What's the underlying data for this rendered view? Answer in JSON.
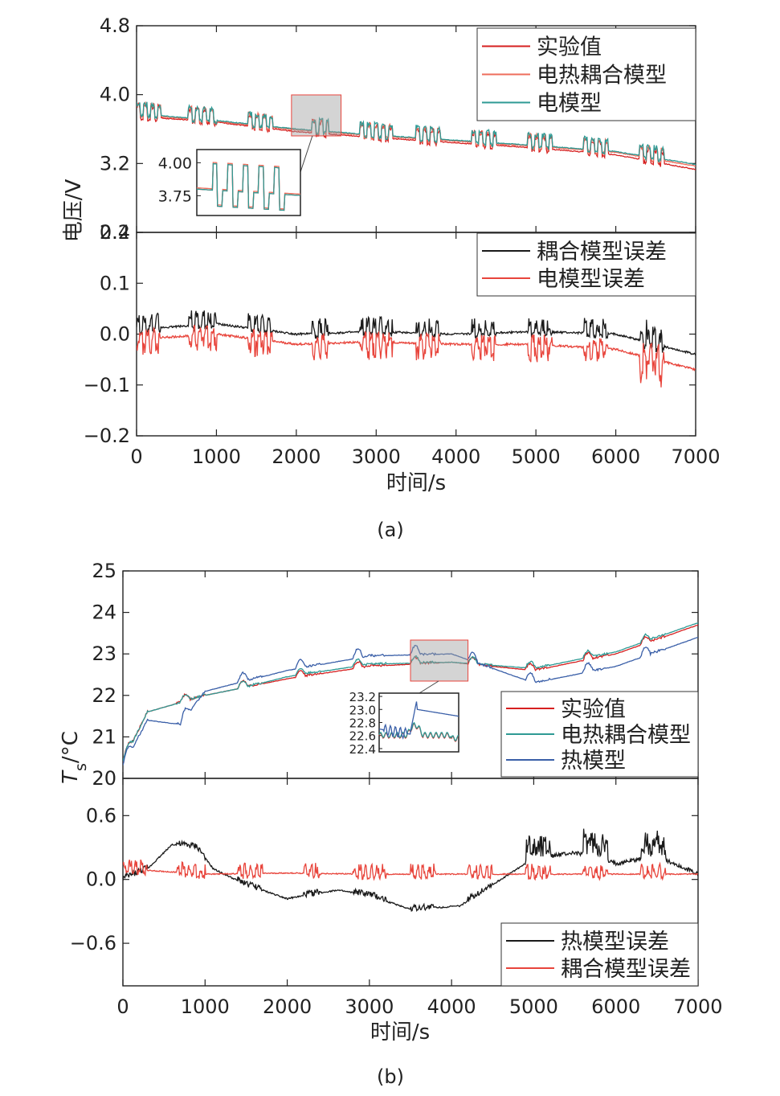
{
  "figure": {
    "panel_a_caption": "(a)",
    "panel_b_caption": "(b)",
    "xlabel": "时间/s",
    "xticks": [
      0,
      1000,
      2000,
      3000,
      4000,
      5000,
      6000,
      7000
    ],
    "xlim": [
      0,
      7000
    ]
  },
  "chart_data": [
    {
      "id": "a_top",
      "type": "line",
      "ylabel_shared": "电压/V",
      "ylim": [
        2.4,
        4.8
      ],
      "yticks": [
        "4.8",
        "4.0",
        "3.2",
        "2.4"
      ],
      "ytick_values": [
        4.8,
        4.0,
        3.2,
        2.4
      ],
      "legend_position": "top-right",
      "series": [
        {
          "name": "实验值",
          "color": "#d62020",
          "base": [
            [
              0,
              3.75
            ],
            [
              1000,
              3.68
            ],
            [
              2000,
              3.57
            ],
            [
              3000,
              3.5
            ],
            [
              4000,
              3.44
            ],
            [
              5000,
              3.38
            ],
            [
              6000,
              3.3
            ],
            [
              7000,
              3.13
            ]
          ],
          "pulses": {
            "bursts": [
              [
                0,
                300
              ],
              [
                650,
                1000
              ],
              [
                1400,
                1700
              ],
              [
                2200,
                2400
              ],
              [
                2800,
                3200
              ],
              [
                3500,
                3800
              ],
              [
                4200,
                4500
              ],
              [
                4900,
                5200
              ],
              [
                5600,
                5900
              ],
              [
                6300,
                6600
              ]
            ],
            "amp": 0.15
          }
        },
        {
          "name": "电热耦合模型",
          "color": "#ee6d5b",
          "base": [
            [
              0,
              3.77
            ],
            [
              1000,
              3.69
            ],
            [
              2000,
              3.59
            ],
            [
              3000,
              3.52
            ],
            [
              4000,
              3.46
            ],
            [
              5000,
              3.4
            ],
            [
              6000,
              3.33
            ],
            [
              7000,
              3.17
            ]
          ]
        },
        {
          "name": "电模型",
          "color": "#2e9a94",
          "base": [
            [
              0,
              3.78
            ],
            [
              1000,
              3.7
            ],
            [
              2000,
              3.6
            ],
            [
              3000,
              3.53
            ],
            [
              4000,
              3.47
            ],
            [
              5000,
              3.41
            ],
            [
              6000,
              3.34
            ],
            [
              7000,
              3.19
            ]
          ]
        }
      ],
      "inset": {
        "yticks": [
          "4.00",
          "3.75"
        ],
        "ytick_values": [
          4.0,
          3.75
        ],
        "xrange": [
          2000,
          2500
        ],
        "ylim": [
          3.6,
          4.1
        ]
      }
    },
    {
      "id": "a_bottom",
      "type": "line",
      "ylim": [
        -0.2,
        0.2
      ],
      "yticks": [
        "0.2",
        "0.1",
        "0.0",
        "−0.1",
        "−0.2"
      ],
      "ytick_values": [
        0.2,
        0.1,
        0.0,
        -0.1,
        -0.2
      ],
      "legend_position": "top-right",
      "series": [
        {
          "name": "耦合模型误差",
          "color": "#1a1a1a",
          "base": [
            [
              0,
              0.01
            ],
            [
              1000,
              0.02
            ],
            [
              2000,
              0.0
            ],
            [
              3000,
              0.005
            ],
            [
              4000,
              0.0
            ],
            [
              5000,
              0.005
            ],
            [
              6000,
              0.0
            ],
            [
              7000,
              -0.04
            ]
          ]
        },
        {
          "name": "电模型误差",
          "color": "#e8453c",
          "base": [
            [
              0,
              -0.01
            ],
            [
              1000,
              0.0
            ],
            [
              2000,
              -0.02
            ],
            [
              3000,
              -0.015
            ],
            [
              4000,
              -0.02
            ],
            [
              5000,
              -0.02
            ],
            [
              6000,
              -0.03
            ],
            [
              7000,
              -0.07
            ]
          ]
        }
      ]
    },
    {
      "id": "b_top",
      "type": "line",
      "ylabel_main": "T",
      "ylabel_sub": "s",
      "ylabel_unit": "/°C",
      "ylim": [
        20,
        25
      ],
      "yticks": [
        "25",
        "24",
        "23",
        "22",
        "21",
        "20"
      ],
      "ytick_values": [
        25,
        24,
        23,
        22,
        21,
        20
      ],
      "legend_position": "bottom-right",
      "series": [
        {
          "name": "实验值",
          "color": "#d62020",
          "base": [
            [
              0,
              20.4
            ],
            [
              300,
              21.6
            ],
            [
              1000,
              22.0
            ],
            [
              1500,
              22.2
            ],
            [
              2000,
              22.4
            ],
            [
              3000,
              22.7
            ],
            [
              4000,
              22.8
            ],
            [
              5000,
              22.6
            ],
            [
              6000,
              23.0
            ],
            [
              7000,
              23.7
            ]
          ]
        },
        {
          "name": "电热耦合模型",
          "color": "#2e9a94",
          "base": [
            [
              0,
              20.4
            ],
            [
              300,
              21.6
            ],
            [
              1000,
              22.0
            ],
            [
              1500,
              22.2
            ],
            [
              2000,
              22.45
            ],
            [
              3000,
              22.75
            ],
            [
              4000,
              22.8
            ],
            [
              5000,
              22.65
            ],
            [
              6000,
              23.05
            ],
            [
              7000,
              23.75
            ]
          ]
        },
        {
          "name": "热模型",
          "color": "#3a5fa8",
          "base": [
            [
              0,
              20.3
            ],
            [
              300,
              21.4
            ],
            [
              700,
              21.3
            ],
            [
              1000,
              22.1
            ],
            [
              2000,
              22.6
            ],
            [
              3000,
              22.95
            ],
            [
              4000,
              23.0
            ],
            [
              5000,
              22.3
            ],
            [
              6000,
              22.7
            ],
            [
              7000,
              23.4
            ]
          ]
        }
      ],
      "inset": {
        "yticks": [
          "23.2",
          "23.0",
          "22.8",
          "22.6",
          "22.4"
        ],
        "ytick_values": [
          23.2,
          23.0,
          22.8,
          22.6,
          22.4
        ],
        "xrange": [
          3500,
          4200
        ],
        "ylim": [
          22.35,
          23.25
        ]
      }
    },
    {
      "id": "b_bottom",
      "type": "line",
      "ylim": [
        -1.0,
        0.95
      ],
      "yticks": [
        "0.6",
        "0.0",
        "−0.6"
      ],
      "ytick_values": [
        0.6,
        0.0,
        -0.6
      ],
      "legend_position": "bottom-right",
      "series": [
        {
          "name": "热模型误差",
          "color": "#1a1a1a",
          "base": [
            [
              0,
              0.0
            ],
            [
              300,
              0.1
            ],
            [
              600,
              0.33
            ],
            [
              900,
              0.3
            ],
            [
              1100,
              0.1
            ],
            [
              1500,
              -0.05
            ],
            [
              2000,
              -0.18
            ],
            [
              2600,
              -0.1
            ],
            [
              3000,
              -0.15
            ],
            [
              3500,
              -0.28
            ],
            [
              4100,
              -0.25
            ],
            [
              4500,
              -0.05
            ],
            [
              5000,
              0.2
            ],
            [
              5500,
              0.25
            ],
            [
              6000,
              0.15
            ],
            [
              6500,
              0.22
            ],
            [
              7000,
              0.05
            ]
          ]
        },
        {
          "name": "耦合模型误差",
          "color": "#e8453c",
          "base": [
            [
              0,
              0.1
            ],
            [
              1000,
              0.05
            ],
            [
              2000,
              0.06
            ],
            [
              3000,
              0.05
            ],
            [
              4000,
              0.05
            ],
            [
              5000,
              0.05
            ],
            [
              6000,
              0.05
            ],
            [
              7000,
              0.05
            ]
          ]
        }
      ]
    }
  ]
}
